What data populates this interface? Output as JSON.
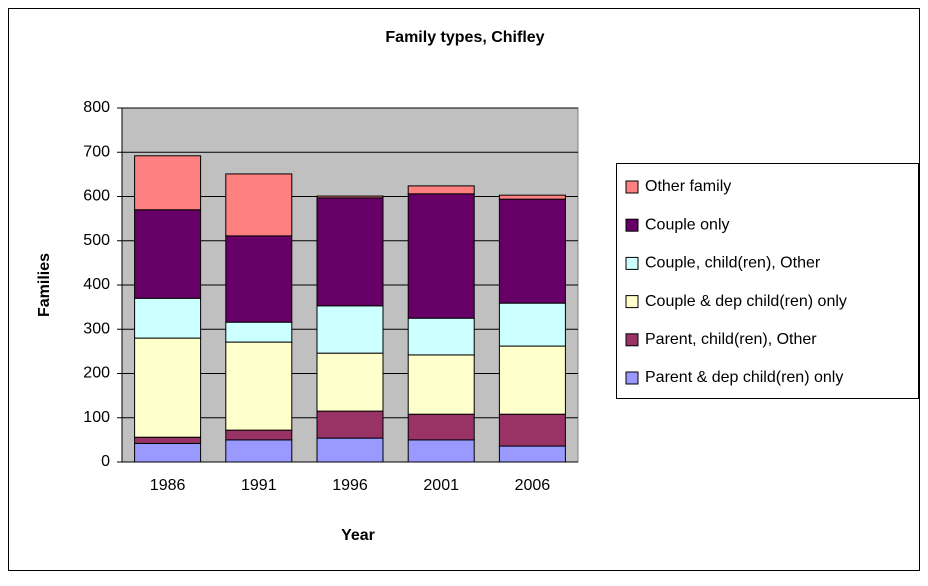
{
  "chart_data": {
    "type": "stacked_bar",
    "title": "Family types, Chifley",
    "xlabel": "Year",
    "ylabel": "Families",
    "categories": [
      "1986",
      "1991",
      "1996",
      "2001",
      "2006"
    ],
    "series": [
      {
        "name": "Parent & dep child(ren) only",
        "color": "#9999ff",
        "values": [
          42,
          50,
          54,
          50,
          36
        ]
      },
      {
        "name": "Parent, child(ren), Other",
        "color": "#993366",
        "values": [
          14,
          22,
          61,
          58,
          72
        ]
      },
      {
        "name": "Couple & dep child(ren) only",
        "color": "#ffffcc",
        "values": [
          224,
          199,
          131,
          134,
          154
        ]
      },
      {
        "name": "Couple, child(ren), Other",
        "color": "#ccffff",
        "values": [
          90,
          45,
          107,
          83,
          97
        ]
      },
      {
        "name": "Couple only",
        "color": "#660066",
        "values": [
          200,
          195,
          244,
          281,
          235
        ]
      },
      {
        "name": "Other family",
        "color": "#ff8080",
        "values": [
          122,
          140,
          4,
          18,
          9
        ]
      }
    ],
    "ylim": [
      0,
      800
    ],
    "yticks": [
      0,
      100,
      200,
      300,
      400,
      500,
      600,
      700,
      800
    ],
    "grid": true,
    "plot_background": "#c0c0c0",
    "legend": "right"
  }
}
